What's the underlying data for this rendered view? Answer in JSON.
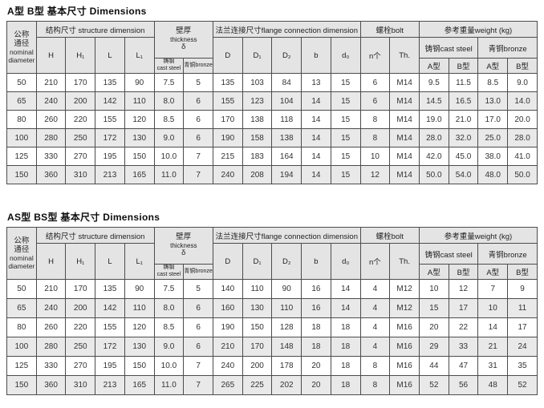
{
  "tables": [
    {
      "title": "A型 B型 基本尺寸  Dimensions",
      "header": {
        "nominal_zh1": "公称",
        "nominal_zh2": "通径",
        "nominal_en1": "nominal",
        "nominal_en2": "diameter",
        "structure": "结构尺寸 structure dimension",
        "col_h": "H",
        "col_h1": "H₁",
        "col_l": "L",
        "col_l1": "L₁",
        "thickness_zh": "壁厚",
        "thickness_en": "thickness",
        "thickness_sym": "δ",
        "cast_zh": "铸钢",
        "cast_en": "cast steel",
        "bronze": "青铜bronze",
        "flange": "法兰连接尺寸flange connection dimension",
        "col_d": "D",
        "col_d1": "D₁",
        "col_d2": "D₂",
        "col_b": "b",
        "col_d0": "d₀",
        "bolt": "螺栓bolt",
        "col_n": "n个",
        "col_th": "Th.",
        "weight": "参考重量weight (kg)",
        "w_cast": "铸钢cast steel",
        "w_bronze": "青铜bronze",
        "w_a1": "A型",
        "w_b1": "B型",
        "w_a2": "A型",
        "w_b2": "B型"
      },
      "rows": [
        [
          "50",
          "210",
          "170",
          "135",
          "90",
          "7.5",
          "5",
          "135",
          "103",
          "84",
          "13",
          "15",
          "6",
          "M14",
          "9.5",
          "11.5",
          "8.5",
          "9.0"
        ],
        [
          "65",
          "240",
          "200",
          "142",
          "110",
          "8.0",
          "6",
          "155",
          "123",
          "104",
          "14",
          "15",
          "6",
          "M14",
          "14.5",
          "16.5",
          "13.0",
          "14.0"
        ],
        [
          "80",
          "260",
          "220",
          "155",
          "120",
          "8.5",
          "6",
          "170",
          "138",
          "118",
          "14",
          "15",
          "8",
          "M14",
          "19.0",
          "21.0",
          "17.0",
          "20.0"
        ],
        [
          "100",
          "280",
          "250",
          "172",
          "130",
          "9.0",
          "6",
          "190",
          "158",
          "138",
          "14",
          "15",
          "8",
          "M14",
          "28.0",
          "32.0",
          "25.0",
          "28.0"
        ],
        [
          "125",
          "330",
          "270",
          "195",
          "150",
          "10.0",
          "7",
          "215",
          "183",
          "164",
          "14",
          "15",
          "10",
          "M14",
          "42.0",
          "45.0",
          "38.0",
          "41.0"
        ],
        [
          "150",
          "360",
          "310",
          "213",
          "165",
          "11.0",
          "7",
          "240",
          "208",
          "194",
          "14",
          "15",
          "12",
          "M14",
          "50.0",
          "54.0",
          "48.0",
          "50.0"
        ]
      ]
    },
    {
      "title": "AS型 BS型 基本尺寸  Dimensions",
      "header": {
        "nominal_zh1": "公称",
        "nominal_zh2": "通径",
        "nominal_en1": "nominal",
        "nominal_en2": "diameter",
        "structure": "结构尺寸 structure dimension",
        "col_h": "H",
        "col_h1": "H₁",
        "col_l": "L",
        "col_l1": "L₁",
        "thickness_zh": "壁厚",
        "thickness_en": "thickness",
        "thickness_sym": "δ",
        "cast_zh": "铸钢",
        "cast_en": "cast steel",
        "bronze": "青铜bronze",
        "flange": "法兰连接尺寸flange connection dimension",
        "col_d": "D",
        "col_d1": "D₁",
        "col_d2": "D₂",
        "col_b": "b",
        "col_d0": "d₀",
        "bolt": "螺栓bolt",
        "col_n": "n个",
        "col_th": "Th.",
        "weight": "参考重量weight (kg)",
        "w_cast": "铸钢cast steel",
        "w_bronze": "青铜bronze",
        "w_a1": "A型",
        "w_b1": "B型",
        "w_a2": "A型",
        "w_b2": "B型"
      },
      "rows": [
        [
          "50",
          "210",
          "170",
          "135",
          "90",
          "7.5",
          "5",
          "140",
          "110",
          "90",
          "16",
          "14",
          "4",
          "M12",
          "10",
          "12",
          "7",
          "9"
        ],
        [
          "65",
          "240",
          "200",
          "142",
          "110",
          "8.0",
          "6",
          "160",
          "130",
          "110",
          "16",
          "14",
          "4",
          "M12",
          "15",
          "17",
          "10",
          "11"
        ],
        [
          "80",
          "260",
          "220",
          "155",
          "120",
          "8.5",
          "6",
          "190",
          "150",
          "128",
          "18",
          "18",
          "4",
          "M16",
          "20",
          "22",
          "14",
          "17"
        ],
        [
          "100",
          "280",
          "250",
          "172",
          "130",
          "9.0",
          "6",
          "210",
          "170",
          "148",
          "18",
          "18",
          "4",
          "M16",
          "29",
          "33",
          "21",
          "24"
        ],
        [
          "125",
          "330",
          "270",
          "195",
          "150",
          "10.0",
          "7",
          "240",
          "200",
          "178",
          "20",
          "18",
          "8",
          "M16",
          "44",
          "47",
          "31",
          "35"
        ],
        [
          "150",
          "360",
          "310",
          "213",
          "165",
          "11.0",
          "7",
          "265",
          "225",
          "202",
          "20",
          "18",
          "8",
          "M16",
          "52",
          "56",
          "48",
          "52"
        ]
      ]
    }
  ]
}
